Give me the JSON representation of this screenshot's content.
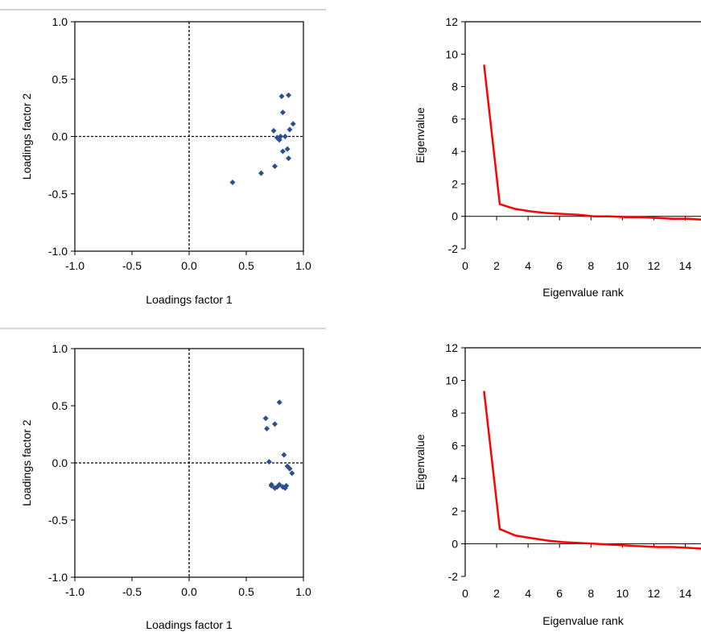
{
  "chart_data": [
    {
      "type": "scatter",
      "xlabel": "Loadings factor 1",
      "ylabel": "Loadings factor 2",
      "xlim": [
        -1.0,
        1.0
      ],
      "ylim": [
        -1.0,
        1.0
      ],
      "xticks": [
        "-1.0",
        "-0.5",
        "0.0",
        "0.5",
        "1.0"
      ],
      "yticks": [
        "1.0",
        "0.5",
        "0.0",
        "-0.5",
        "-1.0"
      ],
      "reference_lines": "dashed at x=0 and y=0",
      "marker_color": "#2e4f8f",
      "x": [
        0.38,
        0.63,
        0.75,
        0.78,
        0.79,
        0.81,
        0.82,
        0.82,
        0.84,
        0.86,
        0.87,
        0.87,
        0.88,
        0.91,
        0.8,
        0.74,
        0.77
      ],
      "y": [
        -0.4,
        -0.32,
        -0.26,
        -0.02,
        -0.03,
        0.35,
        0.21,
        -0.13,
        0.0,
        -0.11,
        0.36,
        -0.19,
        0.06,
        0.11,
        0.0,
        0.05,
        -0.01
      ]
    },
    {
      "type": "line",
      "xlabel": "Eigenvalue rank",
      "ylabel": "Eigenvalue",
      "xlim": [
        0,
        15
      ],
      "ylim": [
        -2,
        12
      ],
      "xticks": [
        "0",
        "2",
        "4",
        "6",
        "8",
        "10",
        "12",
        "14"
      ],
      "yticks": [
        "12",
        "10",
        "8",
        "6",
        "4",
        "2",
        "0",
        "-2"
      ],
      "line_color": "#ff0000",
      "x": [
        1.2,
        2.2,
        3.2,
        4.2,
        5.2,
        6.2,
        7.2,
        8.2,
        9.2,
        10.2,
        11.2,
        12.2,
        13.2,
        14.2,
        15.0
      ],
      "y": [
        9.35,
        0.75,
        0.45,
        0.3,
        0.2,
        0.15,
        0.1,
        0.0,
        0.0,
        -0.05,
        -0.05,
        -0.1,
        -0.15,
        -0.15,
        -0.2
      ]
    },
    {
      "type": "scatter",
      "xlabel": "Loadings factor 1",
      "ylabel": "Loadings factor 2",
      "xlim": [
        -1.0,
        1.0
      ],
      "ylim": [
        -1.0,
        1.0
      ],
      "xticks": [
        "-1.0",
        "-0.5",
        "0.0",
        "0.5",
        "1.0"
      ],
      "yticks": [
        "1.0",
        "0.5",
        "0.0",
        "-0.5",
        "-1.0"
      ],
      "reference_lines": "dashed at x=0 and y=0",
      "marker_color": "#2e4f8f",
      "x": [
        0.67,
        0.68,
        0.7,
        0.72,
        0.75,
        0.75,
        0.79,
        0.79,
        0.82,
        0.83,
        0.84,
        0.85,
        0.86,
        0.88,
        0.9,
        0.72,
        0.77
      ],
      "y": [
        0.39,
        0.3,
        0.01,
        -0.2,
        0.34,
        -0.22,
        0.53,
        -0.19,
        -0.21,
        0.07,
        -0.22,
        -0.2,
        -0.03,
        -0.05,
        -0.09,
        -0.19,
        -0.21
      ]
    },
    {
      "type": "line",
      "xlabel": "Eigenvalue rank",
      "ylabel": "Eigenvalue",
      "xlim": [
        0,
        15
      ],
      "ylim": [
        -2,
        12
      ],
      "xticks": [
        "0",
        "2",
        "4",
        "6",
        "8",
        "10",
        "12",
        "14"
      ],
      "yticks": [
        "12",
        "10",
        "8",
        "6",
        "4",
        "2",
        "0",
        "-2"
      ],
      "line_color": "#ff0000",
      "x": [
        1.2,
        2.2,
        3.2,
        4.2,
        5.2,
        6.2,
        7.2,
        8.2,
        9.2,
        10.2,
        11.2,
        12.2,
        13.2,
        14.2,
        15.0
      ],
      "y": [
        9.35,
        0.9,
        0.5,
        0.35,
        0.2,
        0.1,
        0.05,
        0.0,
        -0.05,
        -0.1,
        -0.15,
        -0.2,
        -0.2,
        -0.25,
        -0.3
      ]
    }
  ]
}
